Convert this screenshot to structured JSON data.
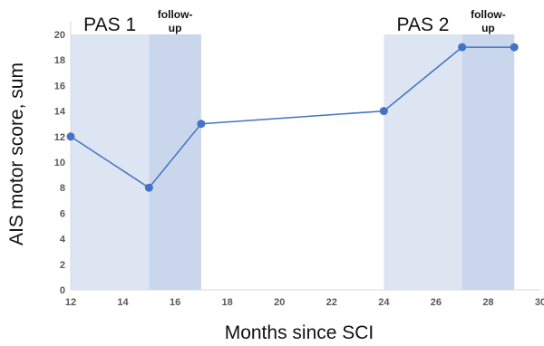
{
  "chart_data": {
    "type": "line",
    "xlabel": "Months since SCI",
    "ylabel": "AIS motor score, sum",
    "xlim": [
      12,
      30
    ],
    "ylim": [
      0,
      20
    ],
    "x_ticks": [
      12,
      14,
      16,
      18,
      20,
      22,
      24,
      26,
      28,
      30
    ],
    "y_ticks": [
      0,
      2,
      4,
      6,
      8,
      10,
      12,
      14,
      16,
      18,
      20
    ],
    "grid": false,
    "series": [
      {
        "x": [
          12,
          15,
          17,
          24,
          27,
          29
        ],
        "y": [
          12,
          8,
          13,
          14,
          19,
          19
        ],
        "color": "#4472c4"
      }
    ],
    "regions": [
      {
        "x0": 12,
        "x1": 15,
        "color": "#dde5f2",
        "label": "PAS 1"
      },
      {
        "x0": 15,
        "x1": 17,
        "color": "#c9d6ec",
        "label_line1": "follow-",
        "label_line2": "up"
      },
      {
        "x0": 24,
        "x1": 27,
        "color": "#dde5f2",
        "label": "PAS 2"
      },
      {
        "x0": 27,
        "x1": 29,
        "color": "#c9d6ec",
        "label_line1": "follow-",
        "label_line2": "up"
      }
    ],
    "axis_color": "#d9d9d9"
  }
}
